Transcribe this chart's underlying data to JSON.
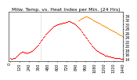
{
  "title": "Milw. Temp. vs. Heat Index per Min. (24 Hrs)",
  "bg_color": "#ffffff",
  "plot_bg": "#ffffff",
  "line_color_temp": "#ff0000",
  "line_color_heat": "#ff8800",
  "ylim": [
    13,
    36
  ],
  "ytick_vals": [
    14,
    16,
    18,
    20,
    22,
    24,
    26,
    28,
    30,
    32,
    34
  ],
  "temp_x": [
    0,
    10,
    20,
    30,
    40,
    50,
    60,
    70,
    80,
    90,
    100,
    110,
    120,
    130,
    140,
    150,
    160,
    170,
    180,
    190,
    200,
    210,
    220,
    230,
    240,
    250,
    260,
    270,
    280,
    290,
    300,
    310,
    320,
    330,
    340,
    350,
    360,
    370,
    380,
    390,
    400,
    410,
    420,
    430,
    440,
    450,
    460,
    470,
    480,
    490,
    500,
    510,
    520,
    530,
    540,
    550,
    560,
    570,
    580,
    590,
    600,
    610,
    620,
    630,
    640,
    650,
    660,
    670,
    680,
    690,
    700,
    710,
    720,
    730,
    740,
    750,
    760,
    770,
    780,
    790,
    800,
    810,
    820,
    830,
    840,
    850,
    860,
    870,
    880,
    890,
    900,
    910,
    920,
    930,
    940,
    950,
    960,
    970,
    980,
    990,
    1000,
    1010,
    1020,
    1030,
    1040,
    1050,
    1060,
    1070,
    1080,
    1090,
    1100,
    1110,
    1120,
    1130,
    1140,
    1150,
    1160,
    1170,
    1180,
    1190,
    1200,
    1210,
    1220,
    1230,
    1240,
    1250,
    1260,
    1270,
    1280,
    1290,
    1300,
    1310,
    1320,
    1330,
    1340,
    1350,
    1360,
    1370,
    1380,
    1390,
    1400,
    1410,
    1420,
    1430
  ],
  "temp_y": [
    14.2,
    14.0,
    14.1,
    14.0,
    14.2,
    14.3,
    14.5,
    14.8,
    15.1,
    15.4,
    15.8,
    16.2,
    16.5,
    16.8,
    17.0,
    17.1,
    17.2,
    17.1,
    17.0,
    16.9,
    16.8,
    16.7,
    16.8,
    16.9,
    17.0,
    17.2,
    17.4,
    17.6,
    17.8,
    18.0,
    18.3,
    18.6,
    19.0,
    19.4,
    19.8,
    20.2,
    20.7,
    21.2,
    21.7,
    22.2,
    22.7,
    23.2,
    23.7,
    24.2,
    24.7,
    25.1,
    25.5,
    25.9,
    26.3,
    26.7,
    27.1,
    27.5,
    27.9,
    28.2,
    28.5,
    28.8,
    29.1,
    29.3,
    29.5,
    29.7,
    29.9,
    30.0,
    30.1,
    30.2,
    30.3,
    30.4,
    30.5,
    30.6,
    30.7,
    30.8,
    30.9,
    31.0,
    31.1,
    31.2,
    31.3,
    31.4,
    31.3,
    31.2,
    31.0,
    30.9,
    30.7,
    30.5,
    30.3,
    30.0,
    29.7,
    29.4,
    29.0,
    28.6,
    28.2,
    27.7,
    27.3,
    26.8,
    26.3,
    25.8,
    25.3,
    24.8,
    24.3,
    23.8,
    23.3,
    22.8,
    22.3,
    21.8,
    21.3,
    20.8,
    20.3,
    19.9,
    19.5,
    19.1,
    18.7,
    18.4,
    18.1,
    17.8,
    17.5,
    17.2,
    17.0,
    16.8,
    16.6,
    16.4,
    16.2,
    16.0,
    15.8,
    15.6,
    15.5,
    15.4,
    15.3,
    15.2,
    15.1,
    15.0,
    14.9,
    14.8,
    14.7,
    14.6,
    14.6,
    14.5,
    14.5,
    14.4,
    14.4,
    14.3,
    14.3,
    14.2,
    14.2,
    14.1,
    14.1,
    14.0
  ],
  "heat_x": [
    870,
    880,
    890,
    900,
    910,
    920,
    930,
    940,
    950,
    960,
    970,
    980,
    990,
    1000,
    1010,
    1020,
    1030,
    1040,
    1050,
    1060,
    1070,
    1080,
    1090,
    1100,
    1110,
    1120,
    1130,
    1140,
    1150,
    1160,
    1170,
    1180,
    1190,
    1200,
    1210,
    1220,
    1230,
    1240,
    1250,
    1260,
    1270,
    1280,
    1290,
    1300,
    1310,
    1320,
    1330,
    1340,
    1350,
    1360,
    1370,
    1380,
    1390,
    1400,
    1410,
    1420,
    1430
  ],
  "heat_y": [
    31.8,
    32.0,
    32.3,
    32.5,
    32.7,
    32.9,
    33.1,
    33.3,
    33.4,
    33.5,
    33.6,
    33.5,
    33.4,
    33.2,
    33.0,
    32.8,
    32.6,
    32.4,
    32.2,
    32.0,
    31.8,
    31.6,
    31.4,
    31.2,
    31.0,
    30.8,
    30.6,
    30.4,
    30.2,
    30.0,
    29.8,
    29.6,
    29.4,
    29.2,
    29.0,
    28.8,
    28.6,
    28.4,
    28.2,
    28.0,
    27.8,
    27.6,
    27.4,
    27.2,
    27.0,
    26.8,
    26.6,
    26.4,
    26.2,
    26.0,
    25.8,
    25.6,
    25.4,
    25.2,
    25.0,
    24.8,
    24.6
  ],
  "vline_x": 390,
  "xlim": [
    -10,
    1440
  ],
  "xtick_step": 120,
  "title_fontsize": 4.5,
  "tick_fontsize": 3.5,
  "marker_size": 0.8
}
